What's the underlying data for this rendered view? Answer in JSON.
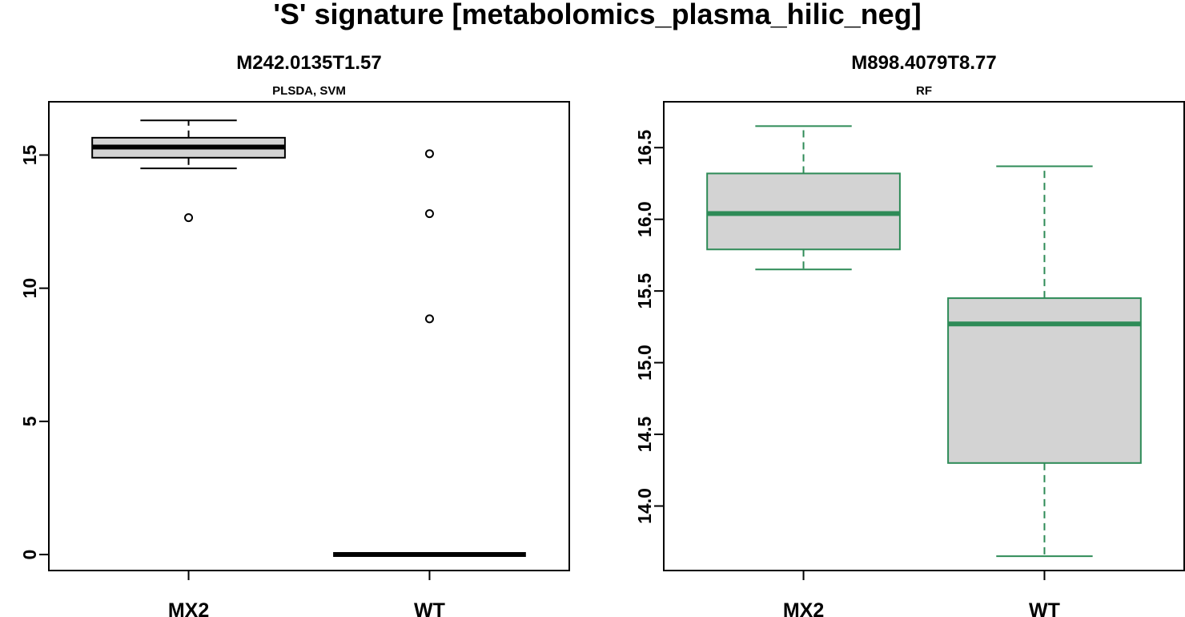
{
  "figure": {
    "title": "'S' signature [metabolomics_plasma_hilic_neg]"
  },
  "chart_data": [
    {
      "type": "boxplot",
      "title": "M242.0135T1.57",
      "subtitle": "PLSDA, SVM",
      "categories": [
        "MX2",
        "WT"
      ],
      "ylim": [
        -0.6,
        17.0
      ],
      "yticks": [
        0,
        5,
        10,
        15
      ],
      "ytick_labels": [
        "0",
        "5",
        "10",
        "15"
      ],
      "color": "#000000",
      "box_fill": "#d3d3d3",
      "boxes": [
        {
          "category": "MX2",
          "whisker_low": 14.5,
          "q1": 14.9,
          "median": 15.3,
          "q3": 15.65,
          "whisker_high": 16.3,
          "outliers": [
            12.65
          ]
        },
        {
          "category": "WT",
          "whisker_low": 0.0,
          "q1": 0.0,
          "median": 0.0,
          "q3": 0.0,
          "whisker_high": 0.0,
          "outliers": [
            15.05,
            12.8,
            8.85
          ]
        }
      ]
    },
    {
      "type": "boxplot",
      "title": "M898.4079T8.77",
      "subtitle": "RF",
      "categories": [
        "MX2",
        "WT"
      ],
      "ylim": [
        13.55,
        16.82
      ],
      "yticks": [
        14.0,
        14.5,
        15.0,
        15.5,
        16.0,
        16.5
      ],
      "ytick_labels": [
        "14.0",
        "14.5",
        "15.0",
        "15.5",
        "16.0",
        "16.5"
      ],
      "color": "#2e8b57",
      "box_fill": "#d3d3d3",
      "boxes": [
        {
          "category": "MX2",
          "whisker_low": 15.65,
          "q1": 15.79,
          "median": 16.04,
          "q3": 16.32,
          "whisker_high": 16.65,
          "outliers": []
        },
        {
          "category": "WT",
          "whisker_low": 13.65,
          "q1": 14.3,
          "median": 15.27,
          "q3": 15.45,
          "whisker_high": 16.37,
          "outliers": []
        }
      ]
    }
  ]
}
